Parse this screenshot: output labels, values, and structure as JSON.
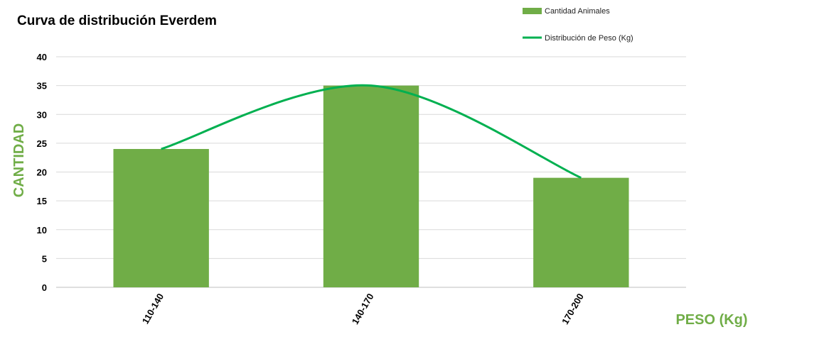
{
  "chart_data": {
    "type": "bar",
    "title": "Curva de distribución Everdem",
    "xlabel": "PESO (Kg)",
    "ylabel": "CANTIDAD",
    "categories": [
      "110-140",
      "140-170",
      "170-200"
    ],
    "series": [
      {
        "name": "Cantidad Animales",
        "type": "bar",
        "values": [
          24,
          35,
          19
        ],
        "color": "#70ad47"
      },
      {
        "name": "Distribución de Peso (Kg)",
        "type": "line",
        "smooth": true,
        "values": [
          24,
          35,
          19
        ],
        "color": "#00b050"
      }
    ],
    "yticks": [
      0,
      5,
      10,
      15,
      20,
      25,
      30,
      35,
      40
    ],
    "ylim": [
      0,
      40
    ],
    "grid": true,
    "legend": "top-right",
    "axis_title_color": "#70ad47"
  }
}
